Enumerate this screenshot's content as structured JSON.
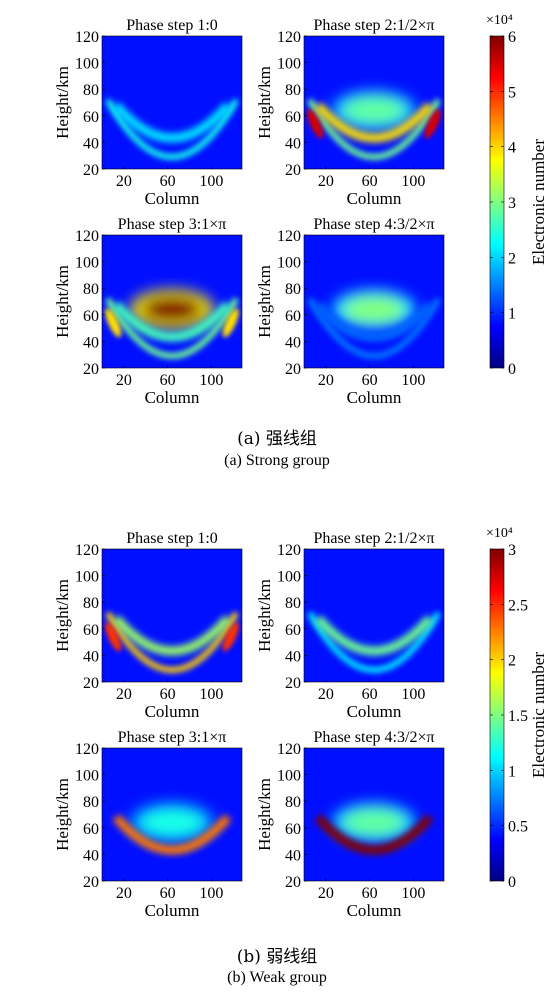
{
  "groups": [
    {
      "caption_zh": "(a) 强线组",
      "caption_en": "(a) Strong group",
      "colorbar": {
        "label": "Electronic number",
        "multiplier": "×10⁴",
        "min": 0,
        "max": 6,
        "ticks": [
          "0",
          "1",
          "2",
          "3",
          "4",
          "5",
          "6"
        ]
      }
    },
    {
      "caption_zh": "(b) 弱线组",
      "caption_en": "(b) Weak group",
      "colorbar": {
        "label": "Electronic number",
        "multiplier": "×10⁴",
        "min": 0,
        "max": 3,
        "ticks": [
          "0",
          "0.5",
          "1",
          "1.5",
          "2",
          "2.5",
          "3"
        ]
      }
    }
  ],
  "chart_data": [
    {
      "type": "heatmap",
      "group": "(a) Strong group",
      "title": "Phase step 1:0",
      "xlabel": "Column",
      "ylabel": "Height/km",
      "xticks": [
        20,
        60,
        100
      ],
      "yticks": [
        20,
        40,
        60,
        80,
        100,
        120
      ],
      "ylim": [
        20,
        120
      ],
      "colorbar_range": [
        0,
        60000
      ],
      "pattern": {
        "inner_arc": 0.25,
        "outer_arc": 0.3,
        "blob": 0.1
      }
    },
    {
      "type": "heatmap",
      "group": "(a) Strong group",
      "title": "Phase step 2:1/2×π",
      "xlabel": "Column",
      "ylabel": "Height/km",
      "xticks": [
        20,
        60,
        100
      ],
      "yticks": [
        20,
        40,
        60,
        80,
        100,
        120
      ],
      "ylim": [
        20,
        120
      ],
      "colorbar_range": [
        0,
        60000
      ],
      "pattern": {
        "inner_arc": 0.6,
        "outer_arc": 0.4,
        "blob": 0.38,
        "edges": 0.9
      }
    },
    {
      "type": "heatmap",
      "group": "(a) Strong group",
      "title": "Phase step 3:1×π",
      "xlabel": "Column",
      "ylabel": "Height/km",
      "xticks": [
        20,
        60,
        100
      ],
      "yticks": [
        20,
        40,
        60,
        80,
        100,
        120
      ],
      "ylim": [
        20,
        120
      ],
      "colorbar_range": [
        0,
        60000
      ],
      "pattern": {
        "inner_arc": 0.35,
        "outer_arc": 0.4,
        "blob": 1.0,
        "edges": 0.6
      }
    },
    {
      "type": "heatmap",
      "group": "(a) Strong group",
      "title": "Phase step 4:3/2×π",
      "xlabel": "Column",
      "ylabel": "Height/km",
      "xticks": [
        20,
        60,
        100
      ],
      "yticks": [
        20,
        40,
        60,
        80,
        100,
        120
      ],
      "ylim": [
        20,
        120
      ],
      "colorbar_range": [
        0,
        60000
      ],
      "pattern": {
        "inner_arc": 0.1,
        "outer_arc": 0.12,
        "blob": 0.42
      }
    },
    {
      "type": "heatmap",
      "group": "(b) Weak group",
      "title": "Phase step 1:0",
      "xlabel": "Column",
      "ylabel": "Height/km",
      "xticks": [
        20,
        60,
        100
      ],
      "yticks": [
        20,
        40,
        60,
        80,
        100,
        120
      ],
      "ylim": [
        20,
        120
      ],
      "colorbar_range": [
        0,
        30000
      ],
      "pattern": {
        "inner_arc": 0.45,
        "outer_arc": 0.62,
        "blob": 0.12,
        "edges": 0.8
      }
    },
    {
      "type": "heatmap",
      "group": "(b) Weak group",
      "title": "Phase step 2:1/2×π",
      "xlabel": "Column",
      "ylabel": "Height/km",
      "xticks": [
        20,
        60,
        100
      ],
      "yticks": [
        20,
        40,
        60,
        80,
        100,
        120
      ],
      "ylim": [
        20,
        120
      ],
      "colorbar_range": [
        0,
        30000
      ],
      "pattern": {
        "inner_arc": 0.4,
        "outer_arc": 0.25,
        "blob": 0.08
      }
    },
    {
      "type": "heatmap",
      "group": "(b) Weak group",
      "title": "Phase step 3:1×π",
      "xlabel": "Column",
      "ylabel": "Height/km",
      "xticks": [
        20,
        60,
        100
      ],
      "yticks": [
        20,
        40,
        60,
        80,
        100,
        120
      ],
      "ylim": [
        20,
        120
      ],
      "colorbar_range": [
        0,
        30000
      ],
      "pattern": {
        "inner_arc": 0.72,
        "outer_arc": 0.0,
        "blob": 0.3
      }
    },
    {
      "type": "heatmap",
      "group": "(b) Weak group",
      "title": "Phase step 4:3/2×π",
      "xlabel": "Column",
      "ylabel": "Height/km",
      "xticks": [
        20,
        60,
        100
      ],
      "yticks": [
        20,
        40,
        60,
        80,
        100,
        120
      ],
      "ylim": [
        20,
        120
      ],
      "colorbar_range": [
        0,
        30000
      ],
      "pattern": {
        "inner_arc": 1.0,
        "outer_arc": 0.0,
        "blob": 0.38
      }
    }
  ]
}
